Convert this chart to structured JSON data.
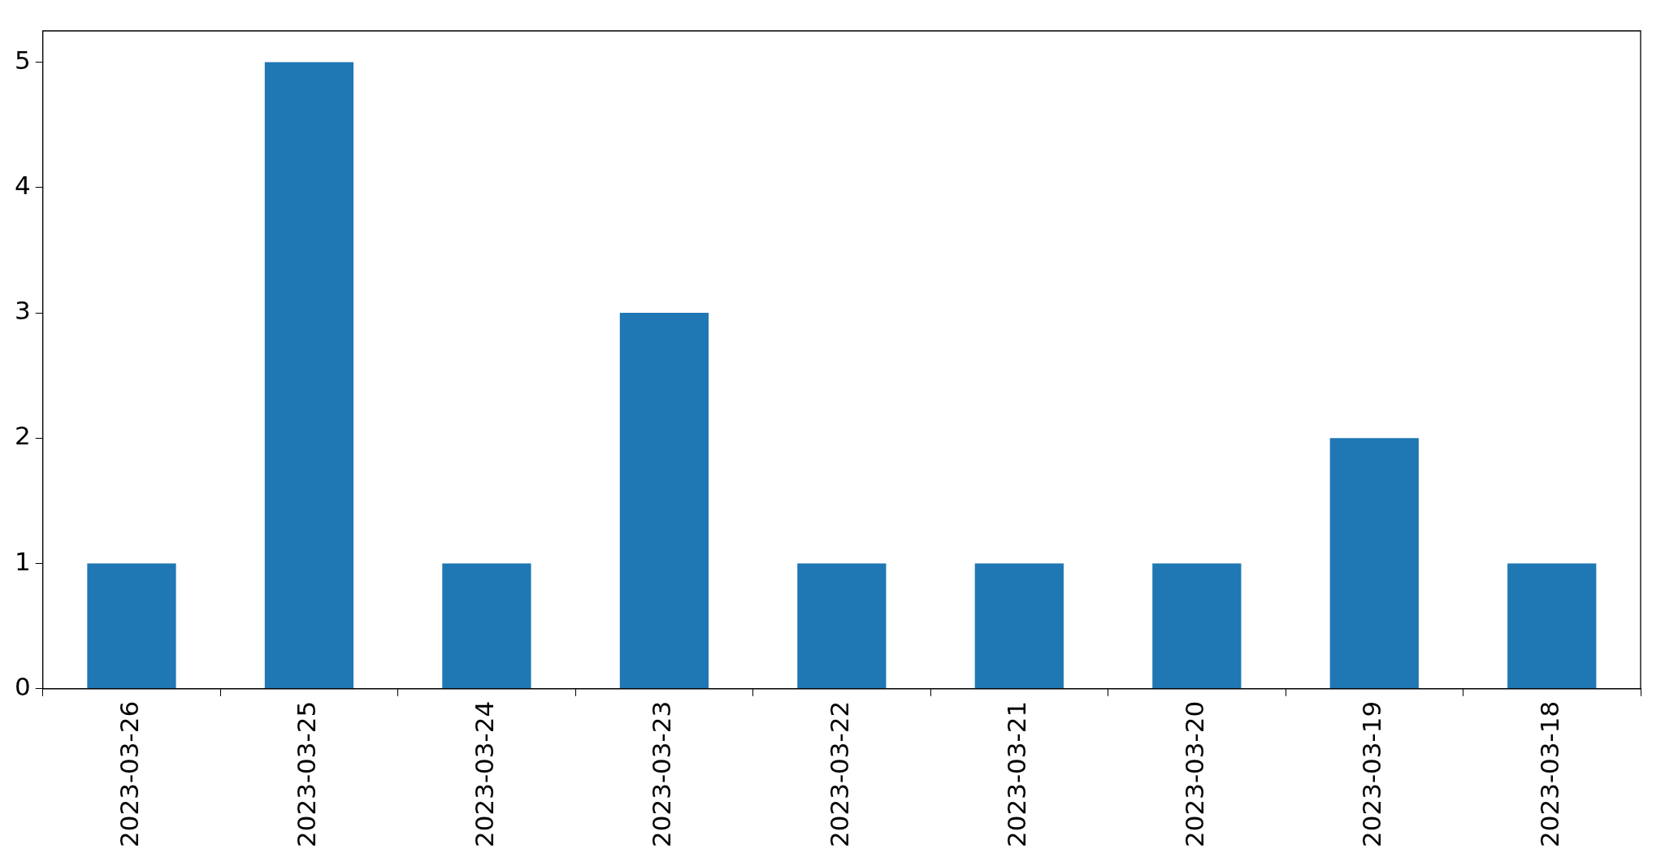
{
  "chart_data": {
    "type": "bar",
    "categories": [
      "2023-03-26",
      "2023-03-25",
      "2023-03-24",
      "2023-03-23",
      "2023-03-22",
      "2023-03-21",
      "2023-03-20",
      "2023-03-19",
      "2023-03-18"
    ],
    "values": [
      1,
      5,
      1,
      3,
      1,
      1,
      1,
      2,
      1
    ],
    "color": "#1f77b4",
    "ylim": [
      0,
      5.25
    ],
    "yticks": [
      0,
      1,
      2,
      3,
      4,
      5
    ],
    "grid": false,
    "legend": false
  }
}
